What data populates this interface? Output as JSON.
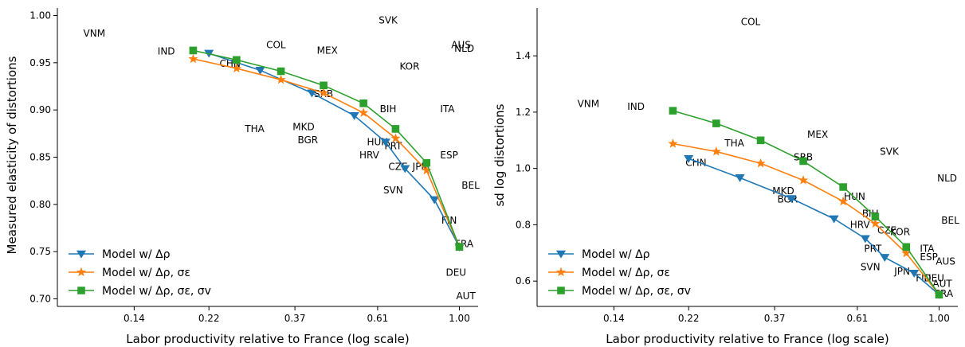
{
  "figure": {
    "x_scale": "log"
  },
  "chart_data": [
    {
      "type": "line",
      "xlabel": "Labor productivity relative to France (log scale)",
      "ylabel": "Measured elasticity of distortions",
      "x_scale": "log",
      "xlim": [
        0.088,
        1.12
      ],
      "ylim": [
        0.692,
        1.008
      ],
      "xticks": [
        0.14,
        0.22,
        0.37,
        0.61,
        1.0
      ],
      "xtick_labels": [
        "0.14",
        "0.22",
        "0.37",
        "0.61",
        "1.00"
      ],
      "yticks": [
        0.7,
        0.75,
        0.8,
        0.85,
        0.9,
        0.95,
        1.0
      ],
      "ytick_labels": [
        "0.70",
        "0.75",
        "0.80",
        "0.85",
        "0.90",
        "0.95",
        "1.00"
      ],
      "legend_position": "lower-left",
      "series": [
        {
          "name": "Model w/ Δρ",
          "color": "#1f77b4",
          "marker": "triangle-down",
          "x": [
            0.22,
            0.3,
            0.41,
            0.53,
            0.64,
            0.72,
            0.86,
            1.0
          ],
          "y": [
            0.96,
            0.942,
            0.918,
            0.894,
            0.866,
            0.838,
            0.805,
            0.755
          ]
        },
        {
          "name": "Model w/ Δρ, σε",
          "color": "#ff7f0e",
          "marker": "star",
          "x": [
            0.2,
            0.26,
            0.34,
            0.44,
            0.56,
            0.68,
            0.82,
            1.0
          ],
          "y": [
            0.954,
            0.944,
            0.932,
            0.918,
            0.897,
            0.87,
            0.836,
            0.755
          ]
        },
        {
          "name": "Model w/ Δρ, σε, σv",
          "color": "#2ca02c",
          "marker": "square",
          "x": [
            0.2,
            0.26,
            0.34,
            0.44,
            0.56,
            0.68,
            0.82,
            1.0
          ],
          "y": [
            0.963,
            0.953,
            0.941,
            0.926,
            0.907,
            0.88,
            0.844,
            0.755
          ]
        }
      ],
      "country_labels": [
        {
          "text": "VNM",
          "x": 0.11,
          "y": 0.981
        },
        {
          "text": "IND",
          "x": 0.17,
          "y": 0.962
        },
        {
          "text": "CHN",
          "x": 0.25,
          "y": 0.949
        },
        {
          "text": "COL",
          "x": 0.33,
          "y": 0.969
        },
        {
          "text": "MEX",
          "x": 0.45,
          "y": 0.963
        },
        {
          "text": "SVK",
          "x": 0.65,
          "y": 0.995
        },
        {
          "text": "AUS",
          "x": 1.01,
          "y": 0.969
        },
        {
          "text": "NLD",
          "x": 1.03,
          "y": 0.965
        },
        {
          "text": "KOR",
          "x": 0.74,
          "y": 0.946
        },
        {
          "text": "SRB",
          "x": 0.44,
          "y": 0.917
        },
        {
          "text": "BIH",
          "x": 0.65,
          "y": 0.901
        },
        {
          "text": "ITA",
          "x": 0.93,
          "y": 0.901
        },
        {
          "text": "THA",
          "x": 0.29,
          "y": 0.88
        },
        {
          "text": "MKD",
          "x": 0.39,
          "y": 0.882
        },
        {
          "text": "BGR",
          "x": 0.4,
          "y": 0.868
        },
        {
          "text": "HUN",
          "x": 0.61,
          "y": 0.866
        },
        {
          "text": "PRT",
          "x": 0.67,
          "y": 0.862
        },
        {
          "text": "HRV",
          "x": 0.58,
          "y": 0.852
        },
        {
          "text": "ESP",
          "x": 0.94,
          "y": 0.852
        },
        {
          "text": "CZE",
          "x": 0.69,
          "y": 0.84
        },
        {
          "text": "JPN",
          "x": 0.79,
          "y": 0.84
        },
        {
          "text": "BEL",
          "x": 1.07,
          "y": 0.82
        },
        {
          "text": "SVN",
          "x": 0.67,
          "y": 0.815
        },
        {
          "text": "FIN",
          "x": 0.94,
          "y": 0.783
        },
        {
          "text": "FRA",
          "x": 1.03,
          "y": 0.758
        },
        {
          "text": "DEU",
          "x": 0.98,
          "y": 0.728
        },
        {
          "text": "AUT",
          "x": 1.04,
          "y": 0.703
        }
      ]
    },
    {
      "type": "line",
      "xlabel": "Labor productivity relative to France (log scale)",
      "ylabel": "sd log distortions",
      "x_scale": "log",
      "xlim": [
        0.088,
        1.12
      ],
      "ylim": [
        0.51,
        1.57
      ],
      "xticks": [
        0.14,
        0.22,
        0.37,
        0.61,
        1.0
      ],
      "xtick_labels": [
        "0.14",
        "0.22",
        "0.37",
        "0.61",
        "1.00"
      ],
      "yticks": [
        0.6,
        0.8,
        1.0,
        1.2,
        1.4
      ],
      "ytick_labels": [
        "0.6",
        "0.8",
        "1.0",
        "1.2",
        "1.4"
      ],
      "legend_position": "lower-left",
      "series": [
        {
          "name": "Model w/ Δρ",
          "color": "#1f77b4",
          "marker": "triangle-down",
          "x": [
            0.22,
            0.3,
            0.41,
            0.53,
            0.64,
            0.72,
            0.86,
            1.0
          ],
          "y": [
            1.035,
            0.967,
            0.893,
            0.821,
            0.751,
            0.684,
            0.628,
            0.552
          ]
        },
        {
          "name": "Model w/ Δρ, σε",
          "color": "#ff7f0e",
          "marker": "star",
          "x": [
            0.2,
            0.26,
            0.34,
            0.44,
            0.56,
            0.68,
            0.82,
            1.0
          ],
          "y": [
            1.088,
            1.06,
            1.018,
            0.958,
            0.883,
            0.804,
            0.699,
            0.552
          ]
        },
        {
          "name": "Model w/ Δρ, σε, σv",
          "color": "#2ca02c",
          "marker": "square",
          "x": [
            0.2,
            0.26,
            0.34,
            0.44,
            0.56,
            0.68,
            0.82,
            1.0
          ],
          "y": [
            1.205,
            1.16,
            1.1,
            1.026,
            0.934,
            0.829,
            0.721,
            0.552
          ]
        }
      ],
      "country_labels": [
        {
          "text": "COL",
          "x": 0.32,
          "y": 1.52
        },
        {
          "text": "VNM",
          "x": 0.12,
          "y": 1.23
        },
        {
          "text": "IND",
          "x": 0.16,
          "y": 1.22
        },
        {
          "text": "THA",
          "x": 0.29,
          "y": 1.09
        },
        {
          "text": "MEX",
          "x": 0.48,
          "y": 1.12
        },
        {
          "text": "SRB",
          "x": 0.44,
          "y": 1.04
        },
        {
          "text": "SVK",
          "x": 0.74,
          "y": 1.06
        },
        {
          "text": "CHN",
          "x": 0.23,
          "y": 1.02
        },
        {
          "text": "NLD",
          "x": 1.05,
          "y": 0.965
        },
        {
          "text": "MKD",
          "x": 0.39,
          "y": 0.92
        },
        {
          "text": "BGR",
          "x": 0.4,
          "y": 0.89
        },
        {
          "text": "HUN",
          "x": 0.6,
          "y": 0.9
        },
        {
          "text": "BIH",
          "x": 0.66,
          "y": 0.84
        },
        {
          "text": "BEL",
          "x": 1.07,
          "y": 0.815
        },
        {
          "text": "HRV",
          "x": 0.62,
          "y": 0.8
        },
        {
          "text": "CZE",
          "x": 0.73,
          "y": 0.78
        },
        {
          "text": "KOR",
          "x": 0.79,
          "y": 0.775
        },
        {
          "text": "ITA",
          "x": 0.93,
          "y": 0.715
        },
        {
          "text": "PRT",
          "x": 0.67,
          "y": 0.715
        },
        {
          "text": "ESP",
          "x": 0.94,
          "y": 0.685
        },
        {
          "text": "AUS",
          "x": 1.04,
          "y": 0.67
        },
        {
          "text": "SVN",
          "x": 0.66,
          "y": 0.65
        },
        {
          "text": "JPN",
          "x": 0.8,
          "y": 0.635
        },
        {
          "text": "FIN",
          "x": 0.91,
          "y": 0.61
        },
        {
          "text": "DEU",
          "x": 0.97,
          "y": 0.61
        },
        {
          "text": "AUT",
          "x": 1.02,
          "y": 0.59
        },
        {
          "text": "FRA",
          "x": 1.03,
          "y": 0.555
        }
      ]
    }
  ]
}
